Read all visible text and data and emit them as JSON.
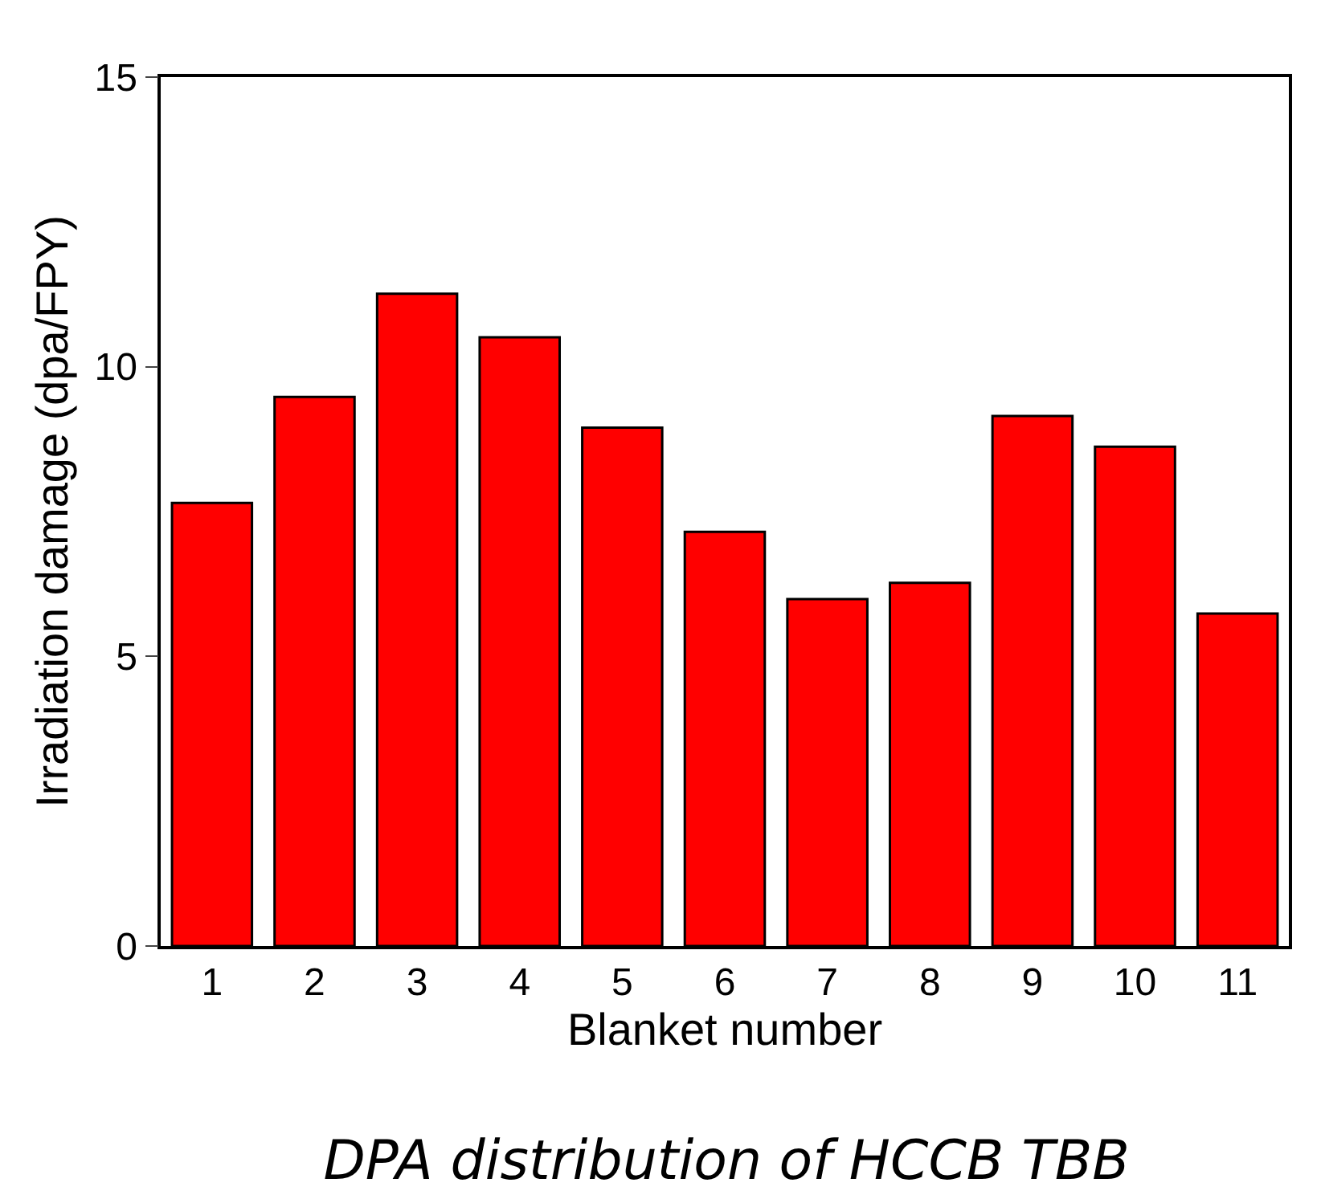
{
  "chart_data": {
    "type": "bar",
    "title": "DPA distribution of HCCB TBB",
    "xlabel": "Blanket number",
    "ylabel": "Irradiation damage (dpa/FPY)",
    "categories": [
      "1",
      "2",
      "3",
      "4",
      "5",
      "6",
      "7",
      "8",
      "9",
      "10",
      "11"
    ],
    "values": [
      7.65,
      9.48,
      11.26,
      10.51,
      8.95,
      7.15,
      5.99,
      6.27,
      9.15,
      8.62,
      5.74
    ],
    "color": "#ff0000",
    "ylim": [
      0,
      15
    ],
    "yticks": [
      0,
      5,
      10,
      15
    ]
  }
}
